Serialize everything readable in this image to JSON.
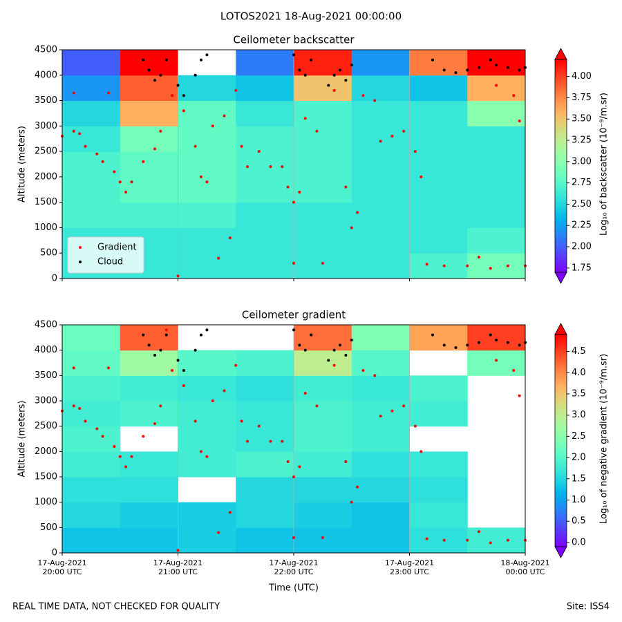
{
  "title": "LOTOS2021 18-Aug-2021 00:00:00",
  "footer_left": "REAL TIME DATA, NOT CHECKED FOR QUALITY",
  "footer_right": "Site: ISS4",
  "chart_data": [
    {
      "type": "heatmap",
      "title": "Ceilometer backscatter",
      "ylabel": "Altitude (meters)",
      "xlim": [
        0,
        4
      ],
      "xticks": [
        0,
        1,
        2,
        3,
        4
      ],
      "grid": true,
      "ylim": [
        0,
        4500
      ],
      "yticks": [
        0,
        500,
        1000,
        1500,
        2000,
        2500,
        3000,
        3500,
        4000,
        4500
      ],
      "colorbar": {
        "label": "Log₁₀ of backscatter (10⁻⁹/m.sr)",
        "cmap": "rainbow",
        "clim": [
          1.7,
          4.2
        ],
        "ticks": [
          {
            "value": 1.75,
            "label": "1.75"
          },
          {
            "value": 2,
            "label": "2.00"
          },
          {
            "value": 2.25,
            "label": "2.25"
          },
          {
            "value": 2.5,
            "label": "2.50"
          },
          {
            "value": 2.75,
            "label": "2.75"
          },
          {
            "value": 3,
            "label": "3.00"
          },
          {
            "value": 3.25,
            "label": "3.25"
          },
          {
            "value": 3.5,
            "label": "3.50"
          },
          {
            "value": 3.75,
            "label": "3.75"
          },
          {
            "value": 4,
            "label": "4.00"
          }
        ]
      },
      "field": {
        "x_edges": [
          0,
          0.5,
          1,
          1.5,
          2,
          2.5,
          3,
          3.5,
          4
        ],
        "y_edges": [
          0,
          500,
          1000,
          1500,
          2000,
          2500,
          3000,
          3500,
          4000,
          4500
        ],
        "values": [
          [
            2.6,
            2.6,
            2.6,
            2.6,
            2.6,
            2.6,
            2.7,
            2.9
          ],
          [
            2.6,
            2.6,
            2.6,
            2.6,
            2.6,
            2.6,
            2.6,
            2.7
          ],
          [
            2.7,
            2.7,
            2.7,
            2.6,
            2.6,
            2.6,
            2.6,
            2.6
          ],
          [
            2.7,
            2.8,
            2.8,
            2.7,
            2.7,
            2.6,
            2.6,
            2.6
          ],
          [
            2.7,
            2.8,
            2.8,
            2.7,
            2.7,
            2.6,
            2.6,
            2.6
          ],
          [
            2.6,
            2.9,
            2.8,
            2.7,
            2.7,
            2.6,
            2.6,
            2.6
          ],
          [
            2.5,
            3.6,
            2.8,
            2.6,
            2.7,
            2.6,
            2.6,
            3.0
          ],
          [
            2.2,
            3.9,
            2.5,
            2.4,
            3.5,
            2.5,
            2.4,
            3.6
          ],
          [
            2.0,
            4.2,
            null,
            2.1,
            4.1,
            2.2,
            3.8,
            4.2
          ]
        ]
      },
      "legend": "lower left",
      "series": [
        {
          "name": "Gradient",
          "color": "#ff0000",
          "x": [
            0.0,
            0.1,
            0.15,
            0.2,
            0.3,
            0.35,
            0.45,
            0.5,
            0.55,
            0.6,
            0.7,
            0.8,
            0.85,
            0.95,
            0.1,
            0.4,
            0.9,
            1.05,
            1.15,
            1.2,
            1.25,
            1.3,
            1.4,
            1.5,
            1.45,
            1.35,
            1.55,
            1.6,
            1.7,
            1.8,
            1.9,
            1.95,
            2.0,
            2.05,
            2.1,
            2.2,
            2.0,
            2.25,
            2.35,
            2.45,
            2.5,
            2.55,
            2.6,
            2.7,
            2.75,
            2.85,
            2.95,
            3.05,
            3.1,
            3.15,
            3.3,
            3.5,
            3.7,
            3.85,
            4.0,
            3.6,
            3.75,
            3.9,
            3.95,
            1.0
          ],
          "values": [
            2800,
            2900,
            2850,
            2600,
            2450,
            2300,
            2100,
            1900,
            1700,
            1900,
            2300,
            2550,
            2900,
            3600,
            3650,
            3650,
            4400,
            3300,
            2600,
            2000,
            1900,
            3000,
            3200,
            3700,
            800,
            400,
            2600,
            2200,
            2500,
            2200,
            2200,
            1800,
            1500,
            1700,
            3150,
            2900,
            300,
            300,
            3700,
            1800,
            1000,
            1300,
            3600,
            3500,
            2700,
            2800,
            2900,
            2500,
            2000,
            280,
            250,
            250,
            200,
            250,
            250,
            420,
            3800,
            3600,
            3100,
            50
          ]
        },
        {
          "name": "Cloud",
          "color": "#000000",
          "x": [
            0.7,
            0.75,
            0.8,
            0.85,
            0.9,
            1.0,
            1.05,
            1.15,
            1.2,
            1.25,
            2.0,
            2.05,
            2.1,
            2.15,
            2.3,
            2.35,
            2.4,
            2.45,
            2.5,
            3.2,
            3.3,
            3.4,
            3.5,
            3.6,
            3.7,
            3.75,
            3.85,
            3.95,
            4.0
          ],
          "values": [
            4300,
            4100,
            3900,
            4000,
            4300,
            3800,
            3600,
            4000,
            4300,
            4400,
            4400,
            4100,
            4000,
            4300,
            3800,
            4000,
            4100,
            3900,
            4200,
            4300,
            4100,
            4050,
            4100,
            4150,
            4300,
            4200,
            4150,
            4100,
            4150
          ]
        }
      ]
    },
    {
      "type": "heatmap",
      "title": "Ceilometer gradient",
      "ylabel": "Altitude (meters)",
      "xlabel": "Time (UTC)",
      "xlim": [
        0,
        4
      ],
      "grid": true,
      "xticks": [
        {
          "value": 0,
          "label": "17-Aug-2021\n20:00 UTC"
        },
        {
          "value": 1,
          "label": "17-Aug-2021\n21:00 UTC"
        },
        {
          "value": 2,
          "label": "17-Aug-2021\n22:00 UTC"
        },
        {
          "value": 3,
          "label": "17-Aug-2021\n23:00 UTC"
        },
        {
          "value": 4,
          "label": "18-Aug-2021\n00:00 UTC"
        }
      ],
      "ylim": [
        0,
        4500
      ],
      "yticks": [
        0,
        500,
        1000,
        1500,
        2000,
        2500,
        3000,
        3500,
        4000,
        4500
      ],
      "colorbar": {
        "label": "Log₁₀ of negative gradient (10⁻⁹/m.sr)",
        "cmap": "rainbow",
        "clim": [
          -0.1,
          4.9
        ],
        "ticks": [
          {
            "value": 0,
            "label": "0.0"
          },
          0.5,
          {
            "value": 1,
            "label": "1.0"
          },
          1.5,
          {
            "value": 2,
            "label": "2.0"
          },
          2.5,
          {
            "value": 3,
            "label": "3.0"
          },
          3.5,
          {
            "value": 4,
            "label": "4.0"
          },
          4.5
        ]
      },
      "field": {
        "x_edges": [
          0,
          0.5,
          1,
          1.5,
          2,
          2.5,
          3,
          3.5,
          4
        ],
        "y_edges": [
          0,
          500,
          1000,
          1500,
          2000,
          2500,
          3000,
          3500,
          4000,
          4500
        ],
        "values": [
          [
            1.3,
            1.3,
            1.4,
            1.3,
            1.3,
            1.3,
            1.6,
            1.8
          ],
          [
            1.5,
            1.4,
            1.4,
            1.5,
            1.4,
            1.3,
            1.7,
            null
          ],
          [
            1.6,
            1.6,
            null,
            1.5,
            1.5,
            1.5,
            1.6,
            null
          ],
          [
            1.8,
            1.7,
            1.8,
            1.9,
            1.8,
            1.6,
            1.7,
            null
          ],
          [
            1.9,
            null,
            1.8,
            1.7,
            1.9,
            1.8,
            null,
            null
          ],
          [
            1.8,
            1.9,
            1.8,
            1.7,
            1.9,
            1.8,
            1.8,
            null
          ],
          [
            1.9,
            1.8,
            1.7,
            1.6,
            1.8,
            1.7,
            1.9,
            null
          ],
          [
            2.1,
            2.7,
            2.0,
            1.9,
            3.0,
            2.0,
            null,
            2.3
          ],
          [
            2.2,
            4.3,
            null,
            null,
            4.2,
            2.4,
            3.8,
            4.5
          ]
        ]
      }
    }
  ]
}
